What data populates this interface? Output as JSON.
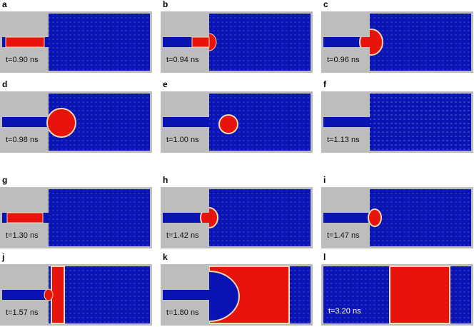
{
  "panels": [
    {
      "label": "a",
      "time": "t=0.90 ns"
    },
    {
      "label": "b",
      "time": "t=0.94 ns"
    },
    {
      "label": "c",
      "time": "t=0.96 ns"
    },
    {
      "label": "d",
      "time": "t=0.98 ns"
    },
    {
      "label": "e",
      "time": "t=1.00 ns"
    },
    {
      "label": "f",
      "time": "t=1.13 ns"
    },
    {
      "label": "g",
      "time": "t=1.30 ns"
    },
    {
      "label": "h",
      "time": "t=1.42 ns"
    },
    {
      "label": "i",
      "time": "t=1.47 ns"
    },
    {
      "label": "j",
      "time": "t=1.57 ns"
    },
    {
      "label": "k",
      "time": "t=1.80 ns"
    },
    {
      "label": "l",
      "time": "t=3.20 ns"
    }
  ]
}
